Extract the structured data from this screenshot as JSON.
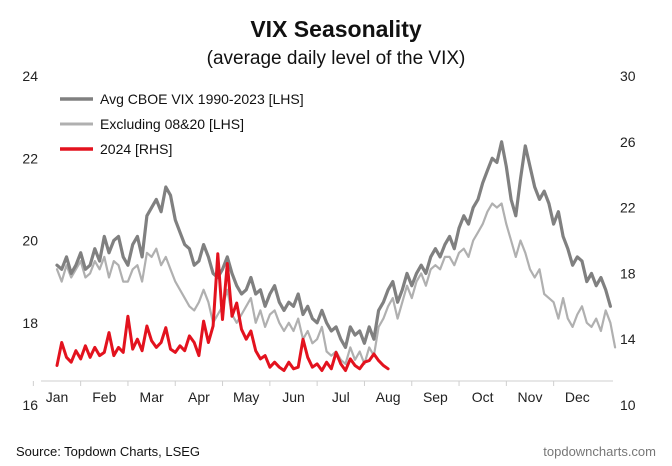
{
  "chart_data": {
    "type": "line",
    "title": "VIX Seasonality",
    "subtitle": "(average daily level of the VIX)",
    "source": "Source: Topdown Charts, LSEG",
    "credit": "topdowncharts.com",
    "x_labels": [
      "Jan",
      "Feb",
      "Mar",
      "Apr",
      "May",
      "Jun",
      "Jul",
      "Aug",
      "Sep",
      "Oct",
      "Nov",
      "Dec"
    ],
    "x_range": [
      0,
      11.8
    ],
    "y_left": {
      "range": [
        16,
        24
      ],
      "ticks": [
        16,
        18,
        20,
        22,
        24
      ],
      "labels": [
        "16",
        "18",
        "20",
        "22",
        "24"
      ]
    },
    "y_right": {
      "range": [
        10,
        30
      ],
      "ticks": [
        10,
        14,
        18,
        22,
        26,
        30
      ],
      "labels": [
        "10",
        "14",
        "18",
        "22",
        "26",
        "30"
      ]
    },
    "grid": false,
    "legend_position": "top-left",
    "series": [
      {
        "name": "Avg CBOE VIX 1990-2023 [LHS]",
        "axis": "left",
        "color": "#808080",
        "width": 3.2,
        "x": [
          0,
          0.1,
          0.2,
          0.3,
          0.4,
          0.5,
          0.6,
          0.7,
          0.8,
          0.9,
          1.0,
          1.1,
          1.2,
          1.3,
          1.4,
          1.5,
          1.6,
          1.7,
          1.8,
          1.9,
          2.0,
          2.1,
          2.2,
          2.3,
          2.4,
          2.5,
          2.6,
          2.7,
          2.8,
          2.9,
          3.0,
          3.1,
          3.2,
          3.3,
          3.4,
          3.5,
          3.6,
          3.7,
          3.8,
          3.9,
          4.0,
          4.1,
          4.2,
          4.3,
          4.4,
          4.5,
          4.6,
          4.7,
          4.8,
          4.9,
          5.0,
          5.1,
          5.2,
          5.3,
          5.4,
          5.5,
          5.6,
          5.7,
          5.8,
          5.9,
          6.0,
          6.1,
          6.2,
          6.3,
          6.4,
          6.5,
          6.6,
          6.7,
          6.8,
          6.9,
          7.0,
          7.1,
          7.2,
          7.3,
          7.4,
          7.5,
          7.6,
          7.7,
          7.8,
          7.9,
          8.0,
          8.1,
          8.2,
          8.3,
          8.4,
          8.5,
          8.6,
          8.7,
          8.8,
          8.9,
          9.0,
          9.1,
          9.2,
          9.3,
          9.4,
          9.5,
          9.6,
          9.7,
          9.8,
          9.9,
          10.0,
          10.1,
          10.2,
          10.3,
          10.4,
          10.5,
          10.6,
          10.7,
          10.8,
          10.9,
          11.0,
          11.1,
          11.2,
          11.3,
          11.4,
          11.5,
          11.6,
          11.7
        ],
        "values": [
          19.4,
          19.3,
          19.6,
          19.2,
          19.4,
          19.7,
          19.3,
          19.4,
          19.8,
          19.5,
          20.1,
          19.7,
          20.0,
          20.1,
          19.6,
          19.4,
          19.9,
          20.1,
          19.6,
          20.6,
          20.8,
          21.0,
          20.7,
          21.3,
          21.1,
          20.5,
          20.2,
          19.9,
          19.8,
          19.4,
          19.5,
          19.9,
          19.6,
          19.2,
          19.1,
          19.3,
          19.6,
          19.2,
          18.9,
          18.7,
          18.8,
          19.1,
          18.7,
          18.8,
          18.4,
          18.7,
          18.9,
          18.5,
          18.3,
          18.5,
          18.4,
          18.7,
          18.2,
          18.4,
          18.1,
          18.0,
          18.3,
          18.0,
          17.8,
          17.9,
          17.6,
          17.4,
          17.9,
          17.7,
          17.8,
          17.5,
          17.9,
          17.6,
          18.3,
          18.5,
          18.8,
          19.0,
          18.5,
          18.8,
          19.2,
          18.9,
          19.2,
          19.4,
          19.2,
          19.6,
          19.8,
          19.6,
          19.9,
          20.1,
          19.8,
          20.3,
          20.6,
          20.4,
          20.8,
          21.0,
          21.4,
          21.7,
          22.0,
          21.9,
          22.4,
          21.8,
          21.0,
          20.6,
          21.5,
          22.3,
          21.8,
          21.3,
          21.0,
          21.2,
          20.9,
          20.4,
          20.7,
          20.1,
          19.8,
          19.4,
          19.6,
          19.5,
          19.0,
          19.2,
          18.9,
          19.1,
          18.8,
          18.4
        ]
      },
      {
        "name": "Excluding 08&20 [LHS]",
        "axis": "left",
        "color": "#b0b0b0",
        "width": 2.2,
        "x": [
          0,
          0.1,
          0.2,
          0.3,
          0.4,
          0.5,
          0.6,
          0.7,
          0.8,
          0.9,
          1.0,
          1.1,
          1.2,
          1.3,
          1.4,
          1.5,
          1.6,
          1.7,
          1.8,
          1.9,
          2.0,
          2.1,
          2.2,
          2.3,
          2.4,
          2.5,
          2.6,
          2.7,
          2.8,
          2.9,
          3.0,
          3.1,
          3.2,
          3.3,
          3.4,
          3.5,
          3.6,
          3.7,
          3.8,
          3.9,
          4.0,
          4.1,
          4.2,
          4.3,
          4.4,
          4.5,
          4.6,
          4.7,
          4.8,
          4.9,
          5.0,
          5.1,
          5.2,
          5.3,
          5.4,
          5.5,
          5.6,
          5.7,
          5.8,
          5.9,
          6.0,
          6.1,
          6.2,
          6.3,
          6.4,
          6.5,
          6.6,
          6.7,
          6.8,
          6.9,
          7.0,
          7.1,
          7.2,
          7.3,
          7.4,
          7.5,
          7.6,
          7.7,
          7.8,
          7.9,
          8.0,
          8.1,
          8.2,
          8.3,
          8.4,
          8.5,
          8.6,
          8.7,
          8.8,
          8.9,
          9.0,
          9.1,
          9.2,
          9.3,
          9.4,
          9.5,
          9.6,
          9.7,
          9.8,
          9.9,
          10.0,
          10.1,
          10.2,
          10.3,
          10.4,
          10.5,
          10.6,
          10.7,
          10.8,
          10.9,
          11.0,
          11.1,
          11.2,
          11.3,
          11.4,
          11.5,
          11.6,
          11.7,
          11.8
        ],
        "values": [
          19.3,
          19.0,
          19.4,
          19.1,
          19.3,
          19.5,
          19.1,
          19.2,
          19.5,
          19.3,
          19.6,
          19.1,
          19.5,
          19.4,
          19.0,
          19.0,
          19.3,
          19.4,
          19.0,
          19.7,
          19.6,
          19.8,
          19.4,
          19.6,
          19.3,
          19.0,
          18.8,
          18.6,
          18.4,
          18.3,
          18.5,
          18.8,
          18.5,
          18.0,
          18.2,
          18.4,
          18.8,
          18.2,
          18.0,
          18.2,
          18.4,
          18.6,
          18.0,
          18.3,
          17.9,
          18.2,
          18.3,
          18.0,
          17.8,
          18.0,
          17.8,
          18.1,
          17.6,
          17.8,
          17.5,
          17.6,
          17.9,
          17.3,
          17.2,
          17.3,
          17.1,
          17.0,
          17.4,
          17.1,
          17.3,
          17.0,
          17.4,
          17.2,
          17.9,
          18.1,
          18.4,
          18.6,
          18.1,
          18.5,
          18.9,
          18.6,
          19.0,
          19.2,
          18.9,
          19.3,
          19.4,
          19.3,
          19.6,
          19.6,
          19.4,
          19.7,
          19.8,
          19.6,
          20.0,
          20.2,
          20.4,
          20.7,
          20.9,
          20.8,
          20.9,
          20.4,
          20.0,
          19.6,
          20.0,
          19.7,
          19.3,
          19.1,
          19.3,
          18.7,
          18.6,
          18.5,
          18.1,
          18.6,
          18.1,
          17.9,
          18.2,
          18.4,
          18.0,
          17.9,
          18.1,
          17.8,
          18.3,
          18.0,
          17.4
        ]
      },
      {
        "name": "2024 [RHS]",
        "axis": "right",
        "color": "#e3121e",
        "width": 3.0,
        "x": [
          0,
          0.1,
          0.2,
          0.3,
          0.4,
          0.5,
          0.6,
          0.7,
          0.8,
          0.9,
          1.0,
          1.1,
          1.2,
          1.3,
          1.4,
          1.5,
          1.6,
          1.7,
          1.8,
          1.9,
          2.0,
          2.1,
          2.2,
          2.3,
          2.4,
          2.5,
          2.6,
          2.7,
          2.8,
          2.9,
          3.0,
          3.1,
          3.2,
          3.3,
          3.4,
          3.5,
          3.6,
          3.7,
          3.8,
          3.9,
          4.0,
          4.1,
          4.2,
          4.3,
          4.4,
          4.5,
          4.6,
          4.7,
          4.8,
          4.9,
          5.0,
          5.1,
          5.2,
          5.3,
          5.4,
          5.5,
          5.6,
          5.7,
          5.8,
          5.9,
          6.0,
          6.1,
          6.2,
          6.3,
          6.4,
          6.5,
          6.6,
          6.7,
          6.8,
          6.9,
          7.0
        ],
        "values": [
          12.4,
          13.8,
          12.9,
          12.6,
          13.3,
          12.8,
          13.6,
          12.9,
          13.5,
          13.0,
          13.2,
          14.4,
          13.0,
          13.5,
          13.2,
          15.4,
          13.4,
          14.0,
          13.3,
          14.8,
          13.9,
          13.5,
          13.8,
          14.7,
          13.4,
          13.2,
          13.6,
          13.3,
          14.2,
          13.8,
          13.0,
          15.1,
          13.8,
          14.8,
          19.2,
          15.2,
          18.6,
          15.4,
          16.2,
          14.6,
          14.0,
          14.5,
          13.3,
          12.8,
          13.0,
          12.3,
          12.6,
          12.3,
          12.1,
          12.6,
          12.2,
          12.3,
          14.0,
          12.9,
          12.3,
          12.5,
          12.1,
          12.6,
          12.2,
          13.2,
          12.5,
          12.1,
          12.8,
          12.4,
          12.2,
          12.6,
          12.7,
          13.1,
          12.7,
          12.4,
          12.2
        ]
      }
    ]
  }
}
